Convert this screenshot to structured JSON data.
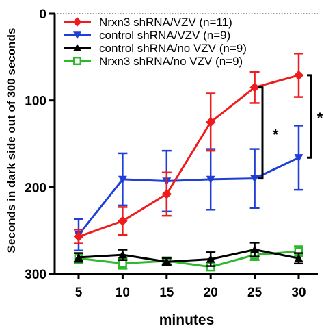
{
  "chart_data": {
    "type": "line",
    "title": "",
    "xlabel": "minutes",
    "ylabel": "Seconds in dark side out of 300 seconds",
    "x": [
      5,
      10,
      15,
      20,
      25,
      30
    ],
    "x_tick_labels": [
      "5",
      "10",
      "15",
      "20",
      "25",
      "30"
    ],
    "y_tick_labels": [
      "0",
      "100",
      "200",
      "300"
    ],
    "ylim": [
      300,
      0
    ],
    "y_inverted": true,
    "y_ticks": [
      0,
      100,
      200,
      300
    ],
    "reference_line": {
      "y": 0,
      "style": "dotted"
    },
    "legend_position": "top-left",
    "series": [
      {
        "name": "Nrxn3 shRNA/VZV (n=11)",
        "color": "#ee1c1c",
        "marker": "diamond",
        "values": [
          257,
          239,
          208,
          125,
          85,
          71
        ],
        "error": [
          8,
          16,
          25,
          33,
          18,
          25
        ]
      },
      {
        "name": "control shRNA/VZV (n=9)",
        "color": "#1f3fd6",
        "marker": "triangle-down",
        "values": [
          255,
          191,
          193,
          191,
          190,
          166
        ],
        "error": [
          18,
          30,
          35,
          35,
          34,
          37
        ]
      },
      {
        "name": "control shRNA/no VZV (n=9)",
        "color": "#000000",
        "marker": "triangle-up",
        "values": [
          281,
          278,
          286,
          283,
          272,
          282
        ],
        "error": [
          5,
          6,
          4,
          8,
          8,
          6
        ]
      },
      {
        "name": "Nrxn3 shRNA/no VZV (n=9)",
        "color": "#2fb82f",
        "marker": "square-open",
        "values": [
          282,
          288,
          285,
          292,
          278,
          274
        ],
        "error": [
          6,
          6,
          4,
          4,
          6,
          6
        ]
      }
    ],
    "annotations": [
      {
        "text": "*",
        "x": 25,
        "y_from": 85,
        "y_to": 190
      },
      {
        "text": "*",
        "x": 30,
        "y_from": 71,
        "y_to": 166
      }
    ]
  }
}
